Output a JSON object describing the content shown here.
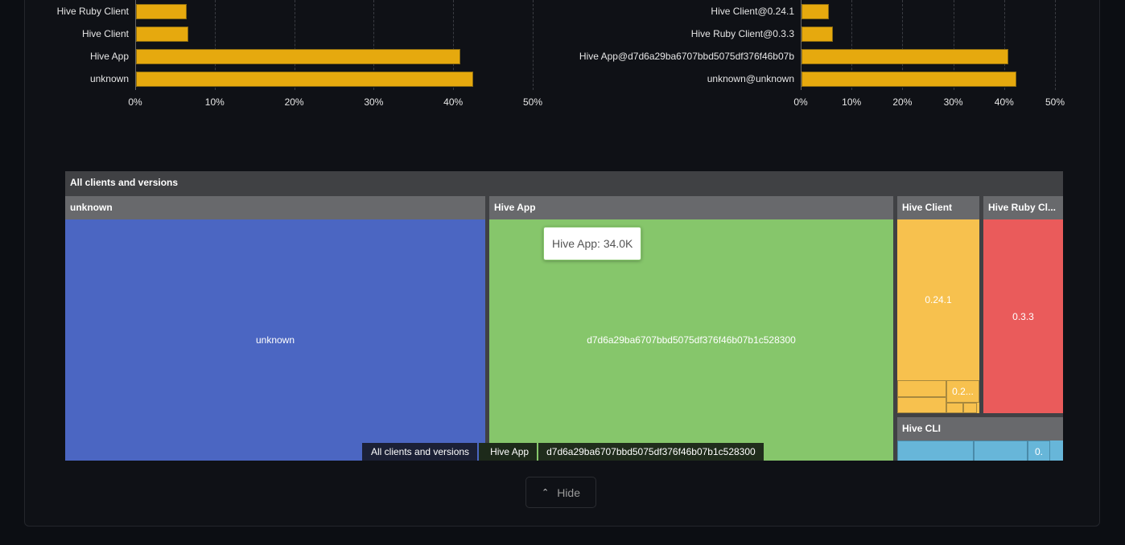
{
  "chart_data": [
    {
      "type": "bar",
      "orientation": "horizontal",
      "categories": [
        "Hive Ruby Client",
        "Hive Client",
        "Hive App",
        "unknown"
      ],
      "values": [
        6.4,
        6.6,
        40.8,
        42.4
      ],
      "xlim": [
        0,
        50
      ],
      "xticks": [
        "0%",
        "10%",
        "20%",
        "30%",
        "40%",
        "50%"
      ],
      "grid": true,
      "color": "#e6a90e"
    },
    {
      "type": "bar",
      "orientation": "horizontal",
      "categories": [
        "Hive Client@0.24.1",
        "Hive Ruby Client@0.3.3",
        "Hive App@d7d6a29ba6707bbd5075df376f46b07b",
        "unknown@unknown"
      ],
      "values": [
        5.4,
        6.2,
        40.7,
        42.2
      ],
      "xlim": [
        0,
        50
      ],
      "xticks": [
        "0%",
        "10%",
        "20%",
        "30%",
        "40%",
        "50%"
      ],
      "grid": true,
      "color": "#e6a90e"
    },
    {
      "type": "treemap",
      "root": "All clients and versions",
      "groups": [
        {
          "name": "unknown",
          "color": "#4b66c2",
          "children": [
            "unknown"
          ]
        },
        {
          "name": "Hive App",
          "color": "#86c66b",
          "children": [
            "d7d6a29ba6707bbd5075df376f46b07b1c528300"
          ]
        },
        {
          "name": "Hive Client",
          "color": "#f7c14e",
          "children": [
            "0.24.1",
            "0.2..."
          ]
        },
        {
          "name": "Hive Ruby Cl...",
          "color": "#ea5b5b",
          "children": [
            "0.3.3"
          ]
        },
        {
          "name": "Hive CLI",
          "color": "#67b6d9",
          "children": [
            "0.",
            ""
          ]
        }
      ],
      "tooltip": "Hive App: 34.0K",
      "breadcrumb": [
        "All clients and versions",
        "Hive App",
        "d7d6a29ba6707bbd5075df376f46b07b1c528300"
      ]
    }
  ],
  "hide_label": "Hide"
}
